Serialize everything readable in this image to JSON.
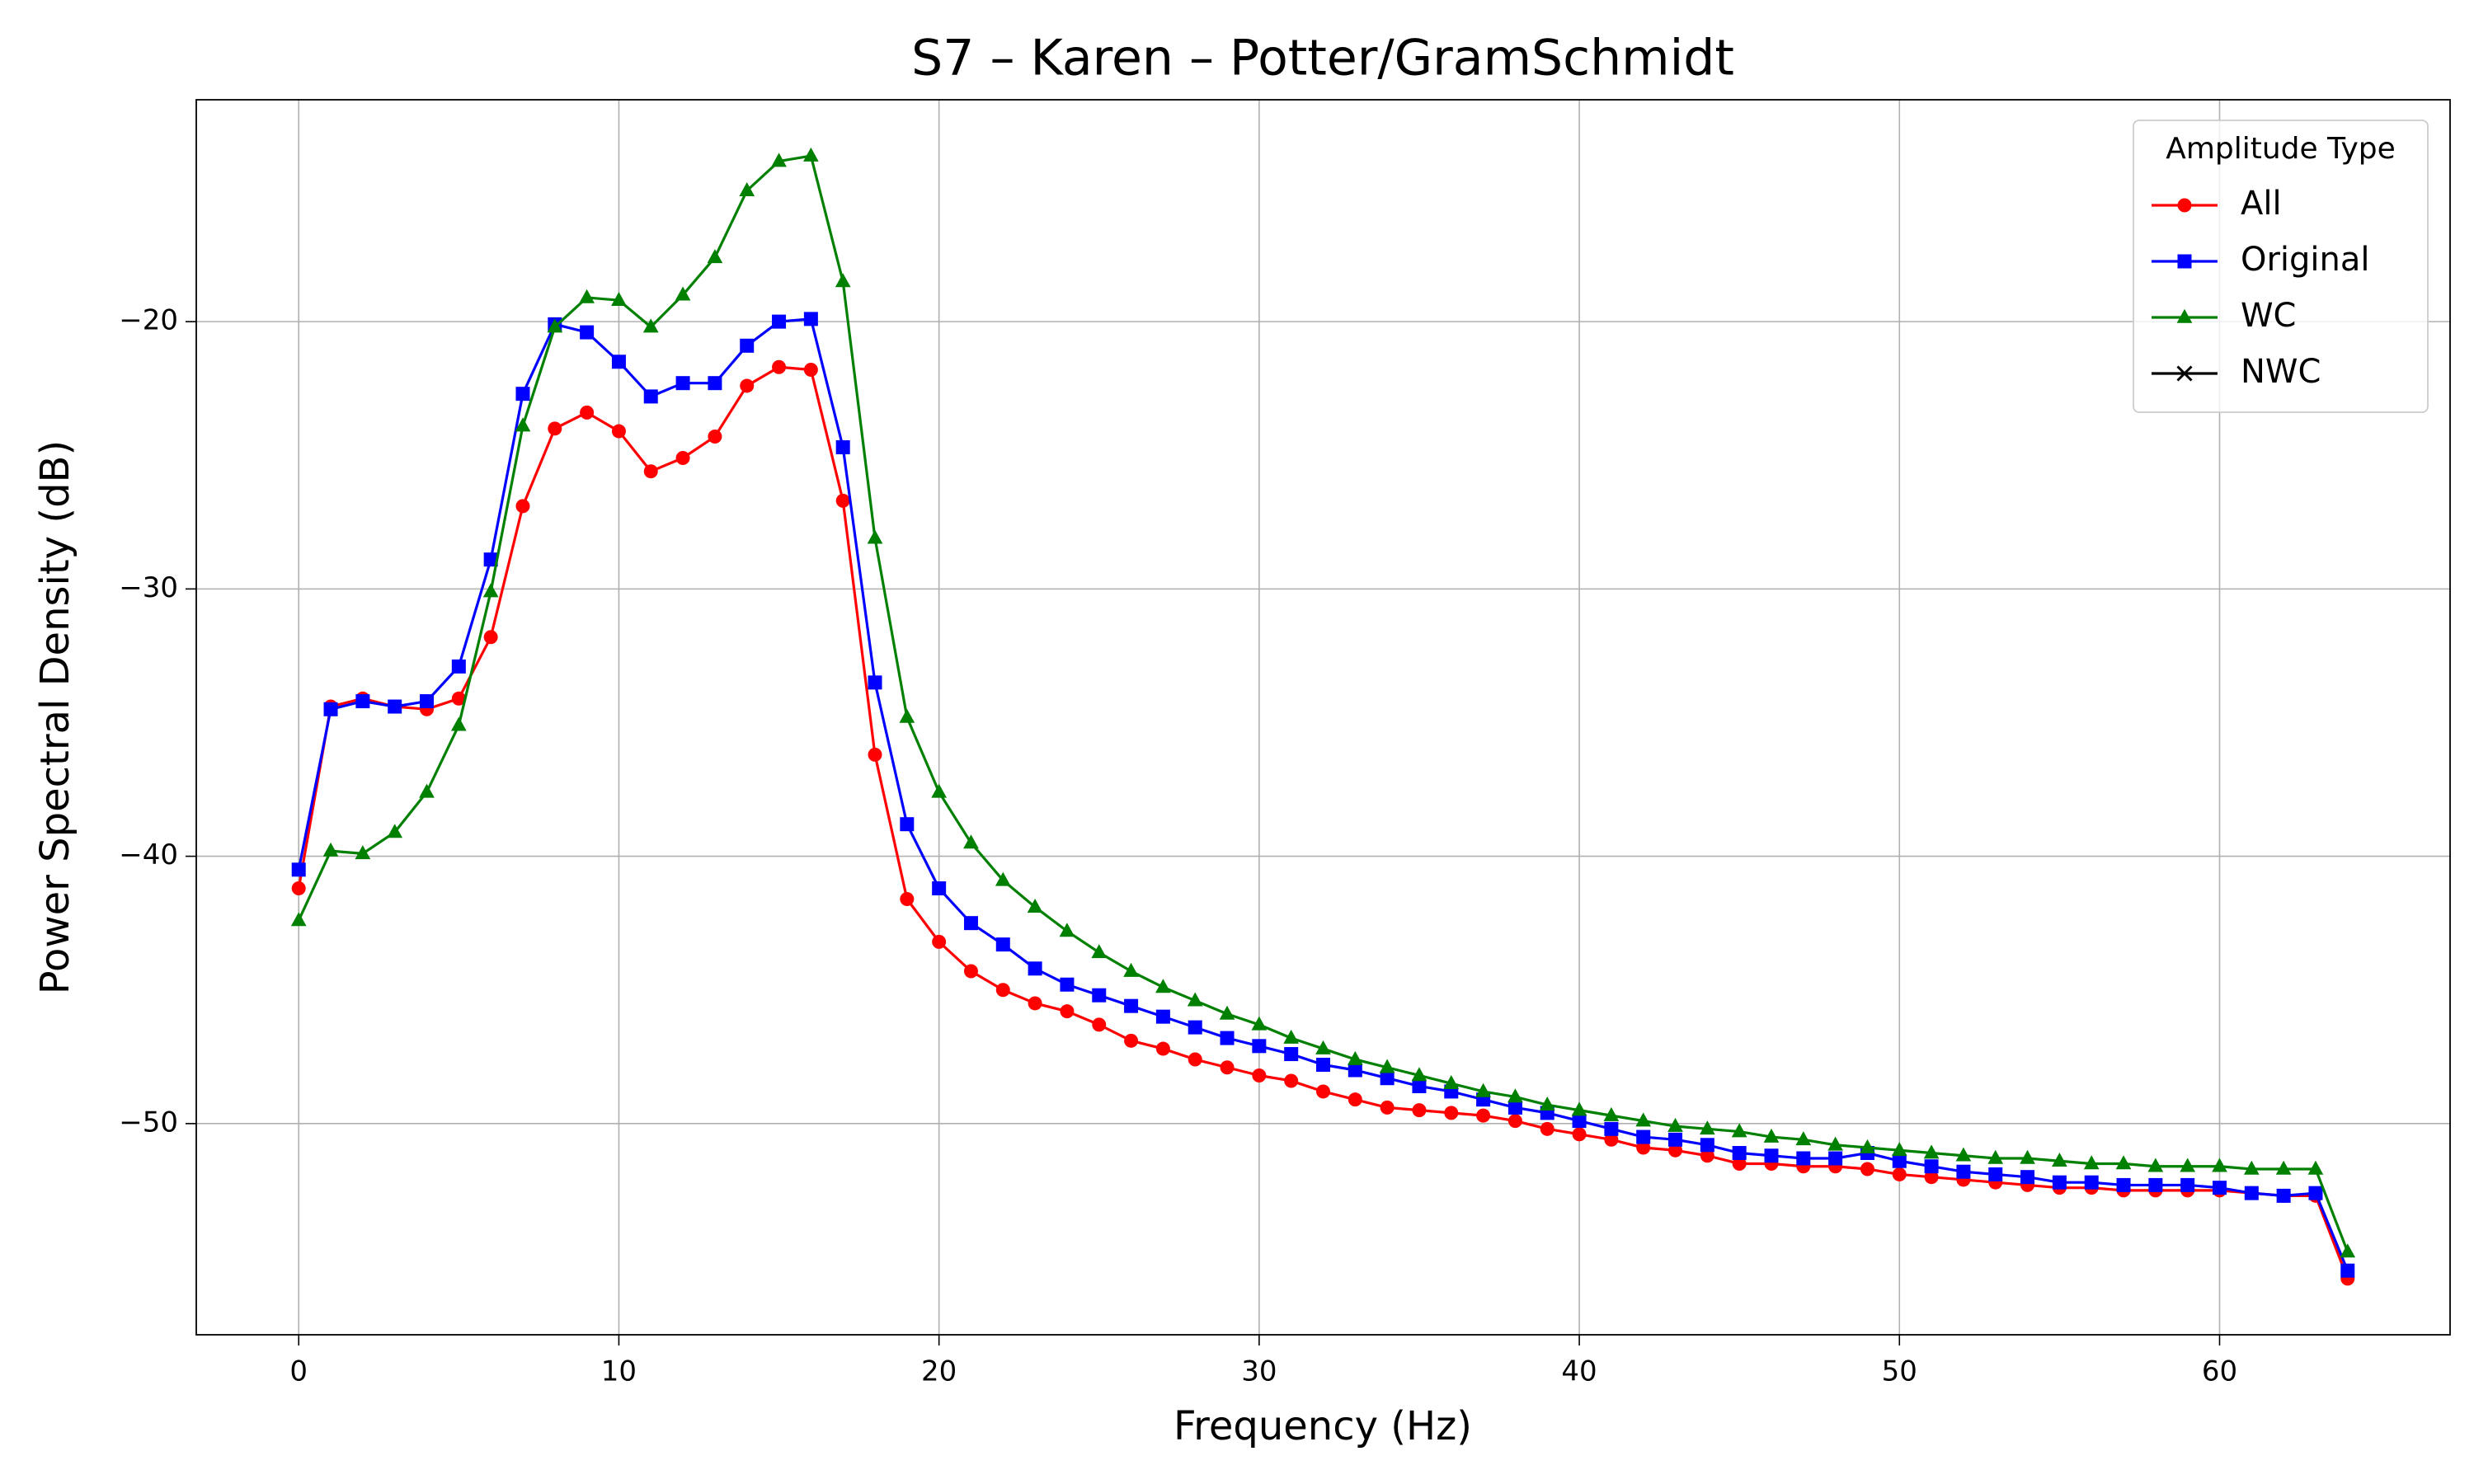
{
  "chart_data": {
    "type": "line",
    "title": "S7 – Karen – Potter/GramSchmidt",
    "xlabel": "Frequency (Hz)",
    "ylabel": "Power Spectral Density (dB)",
    "legend_title": "Amplitude Type",
    "legend": "upper right",
    "grid": true,
    "xlim": [
      -3.2,
      67.2
    ],
    "ylim": [
      -57.9,
      -11.7
    ],
    "xticks": [
      0,
      10,
      20,
      30,
      40,
      50,
      60
    ],
    "yticks": [
      {
        "value": -50,
        "label": "−50"
      },
      {
        "value": -40,
        "label": "−40"
      },
      {
        "value": -30,
        "label": "−30"
      },
      {
        "value": -20,
        "label": "−20"
      }
    ],
    "x": [
      0,
      1,
      2,
      3,
      4,
      5,
      6,
      7,
      8,
      9,
      10,
      11,
      12,
      13,
      14,
      15,
      16,
      17,
      18,
      19,
      20,
      21,
      22,
      23,
      24,
      25,
      26,
      27,
      28,
      29,
      30,
      31,
      32,
      33,
      34,
      35,
      36,
      37,
      38,
      39,
      40,
      41,
      42,
      43,
      44,
      45,
      46,
      47,
      48,
      49,
      50,
      51,
      52,
      53,
      54,
      55,
      56,
      57,
      58,
      59,
      60,
      61,
      62,
      63,
      64
    ],
    "series": [
      {
        "name": "All",
        "color": "#ff0000",
        "marker": "circle",
        "values": [
          -41.2,
          -34.4,
          -34.1,
          -34.4,
          -34.5,
          -34.1,
          -31.8,
          -26.9,
          -24.0,
          -23.4,
          -24.1,
          -25.6,
          -25.1,
          -24.3,
          -22.4,
          -21.7,
          -21.8,
          -26.7,
          -36.2,
          -41.6,
          -43.2,
          -44.3,
          -45.0,
          -45.5,
          -45.8,
          -46.3,
          -46.9,
          -47.2,
          -47.6,
          -47.9,
          -48.2,
          -48.4,
          -48.8,
          -49.1,
          -49.4,
          -49.5,
          -49.6,
          -49.7,
          -49.9,
          -50.2,
          -50.4,
          -50.6,
          -50.9,
          -51.0,
          -51.2,
          -51.5,
          -51.5,
          -51.6,
          -51.6,
          -51.7,
          -51.9,
          -52.0,
          -52.1,
          -52.2,
          -52.3,
          -52.4,
          -52.4,
          -52.5,
          -52.5,
          -52.5,
          -52.5,
          -52.6,
          -52.7,
          -52.7,
          -55.8
        ]
      },
      {
        "name": "Original",
        "color": "#0000ff",
        "marker": "square",
        "values": [
          -40.5,
          -34.5,
          -34.2,
          -34.4,
          -34.2,
          -32.9,
          -28.9,
          -22.7,
          -20.1,
          -20.4,
          -21.5,
          -22.8,
          -22.3,
          -22.3,
          -20.9,
          -20.0,
          -19.9,
          -24.7,
          -33.5,
          -38.8,
          -41.2,
          -42.5,
          -43.3,
          -44.2,
          -44.8,
          -45.2,
          -45.6,
          -46.0,
          -46.4,
          -46.8,
          -47.1,
          -47.4,
          -47.8,
          -48.0,
          -48.3,
          -48.6,
          -48.8,
          -49.1,
          -49.4,
          -49.6,
          -49.9,
          -50.2,
          -50.5,
          -50.6,
          -50.8,
          -51.1,
          -51.2,
          -51.3,
          -51.3,
          -51.1,
          -51.4,
          -51.6,
          -51.8,
          -51.9,
          -52.0,
          -52.2,
          -52.2,
          -52.3,
          -52.3,
          -52.3,
          -52.4,
          -52.6,
          -52.7,
          -52.6,
          -55.5
        ]
      },
      {
        "name": "WC",
        "color": "#008000",
        "marker": "triangle",
        "values": [
          -42.4,
          -39.8,
          -39.9,
          -39.1,
          -37.6,
          -35.1,
          -30.1,
          -23.9,
          -20.2,
          -19.1,
          -19.2,
          -20.2,
          -19.0,
          -17.6,
          -15.1,
          -14.0,
          -13.8,
          -18.5,
          -28.1,
          -34.8,
          -37.6,
          -39.5,
          -40.9,
          -41.9,
          -42.8,
          -43.6,
          -44.3,
          -44.9,
          -45.4,
          -45.9,
          -46.3,
          -46.8,
          -47.2,
          -47.6,
          -47.9,
          -48.2,
          -48.5,
          -48.8,
          -49.0,
          -49.3,
          -49.5,
          -49.7,
          -49.9,
          -50.1,
          -50.2,
          -50.3,
          -50.5,
          -50.6,
          -50.8,
          -50.9,
          -51.0,
          -51.1,
          -51.2,
          -51.3,
          -51.3,
          -51.4,
          -51.5,
          -51.5,
          -51.6,
          -51.6,
          -51.6,
          -51.7,
          -51.7,
          -51.7,
          -54.8
        ]
      },
      {
        "name": "NWC",
        "color": "#000000",
        "marker": "x",
        "values": [
          null,
          null,
          null,
          null,
          null,
          null,
          null,
          null,
          null,
          null,
          null,
          null,
          null,
          null,
          null,
          null,
          null,
          null,
          null,
          null,
          null,
          null,
          null,
          null,
          null,
          null,
          null,
          null,
          null,
          null,
          null,
          null,
          null,
          null,
          null,
          null,
          null,
          null,
          null,
          null,
          null,
          null,
          null,
          null,
          null,
          null,
          null,
          null,
          null,
          null,
          null,
          null,
          null,
          null,
          null,
          null,
          null,
          null,
          null,
          null,
          null,
          null,
          null,
          null,
          null
        ]
      }
    ]
  }
}
